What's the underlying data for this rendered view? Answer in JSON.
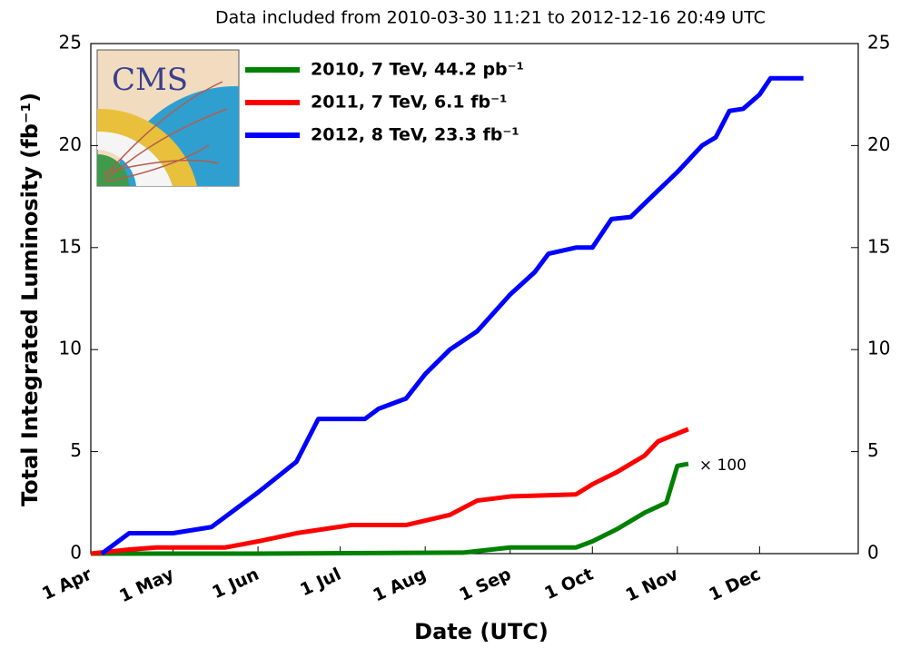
{
  "chart_data": {
    "type": "line",
    "title": "Data included from 2010-03-30 11:21 to 2012-12-16 20:49 UTC",
    "x_label": "Date (UTC)",
    "y_label": "Total Integrated Luminosity (fb⁻¹)",
    "logo_text": "CMS",
    "annotation": "× 100",
    "xlim": [
      "1 Apr",
      "6 Jan"
    ],
    "xticks": [
      "1 Apr",
      "1 May",
      "1 Jun",
      "1 Jul",
      "1 Aug",
      "1 Sep",
      "1 Oct",
      "1 Nov",
      "1 Dec"
    ],
    "ylim": [
      0,
      25
    ],
    "yticks": [
      0,
      5,
      10,
      15,
      20,
      25
    ],
    "y2lim": [
      0,
      25
    ],
    "y2ticks": [
      0,
      5,
      10,
      15,
      20,
      25
    ],
    "legend": "upper left",
    "series": [
      {
        "name": "2010, 7 TeV, 44.2 pb⁻¹",
        "color": "#008000",
        "x": [
          "1 Apr",
          "1 Jun",
          "15 Aug",
          "1 Sep",
          "25 Sep",
          "1 Oct",
          "10 Oct",
          "20 Oct",
          "28 Oct",
          "1 Nov",
          "5 Nov"
        ],
        "values": [
          0,
          0,
          0.05,
          0.3,
          0.3,
          0.6,
          1.2,
          2.0,
          2.5,
          4.3,
          4.4
        ]
      },
      {
        "name": "2011, 7 TeV, 6.1 fb⁻¹",
        "color": "#ff0000",
        "x": [
          "1 Apr",
          "15 Apr",
          "25 Apr",
          "20 May",
          "1 Jun",
          "15 Jun",
          "25 Jun",
          "5 Jul",
          "25 Jul",
          "10 Aug",
          "20 Aug",
          "1 Sep",
          "25 Sep",
          "1 Oct",
          "10 Oct",
          "20 Oct",
          "25 Oct",
          "5 Nov"
        ],
        "values": [
          0,
          0.2,
          0.3,
          0.3,
          0.6,
          1.0,
          1.2,
          1.4,
          1.4,
          1.9,
          2.6,
          2.8,
          2.9,
          3.4,
          4.0,
          4.8,
          5.5,
          6.1
        ]
      },
      {
        "name": "2012, 8 TeV, 23.3 fb⁻¹",
        "color": "#0000ff",
        "x": [
          "5 Apr",
          "10 Apr",
          "15 Apr",
          "1 May",
          "15 May",
          "1 Jun",
          "15 Jun",
          "23 Jun",
          "10 Jul",
          "15 Jul",
          "25 Jul",
          "1 Aug",
          "10 Aug",
          "20 Aug",
          "1 Sep",
          "10 Sep",
          "15 Sep",
          "25 Sep",
          "1 Oct",
          "8 Oct",
          "15 Oct",
          "25 Oct",
          "1 Nov",
          "10 Nov",
          "15 Nov",
          "20 Nov",
          "25 Nov",
          "1 Dec",
          "5 Dec",
          "17 Dec"
        ],
        "values": [
          0,
          0.5,
          1.0,
          1.0,
          1.3,
          3.0,
          4.5,
          6.6,
          6.6,
          7.1,
          7.6,
          8.8,
          10.0,
          10.9,
          12.7,
          13.8,
          14.7,
          15.0,
          15.0,
          16.4,
          16.5,
          17.8,
          18.7,
          20.0,
          20.4,
          21.7,
          21.8,
          22.5,
          23.3,
          23.3
        ]
      }
    ]
  }
}
